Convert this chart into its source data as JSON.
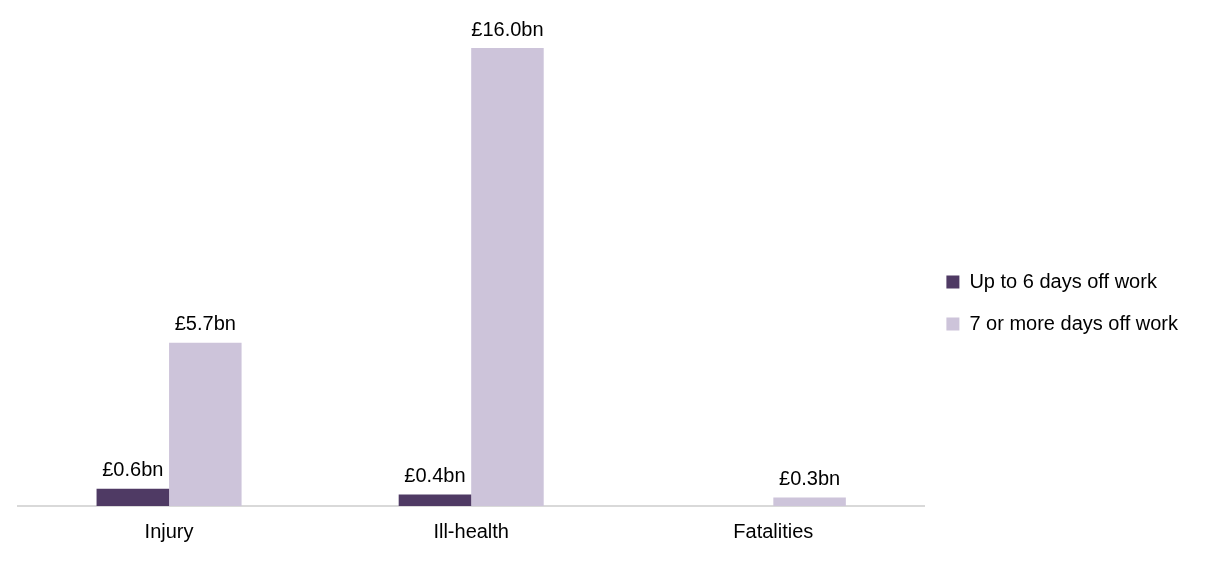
{
  "chart_data": {
    "type": "bar",
    "categories": [
      "Injury",
      "Ill-health",
      "Fatalities"
    ],
    "series": [
      {
        "name": "Up to 6 days off work",
        "color": "#4f3a64",
        "values": [
          0.6,
          0.4,
          null
        ],
        "value_labels": [
          "£0.6bn",
          "£0.4bn",
          null
        ]
      },
      {
        "name": "7 or more days off work",
        "color": "#cdc4da",
        "values": [
          5.7,
          16.0,
          0.3
        ],
        "value_labels": [
          "£5.7bn",
          "£16.0bn",
          "£0.3bn"
        ]
      }
    ],
    "relative": false,
    "grid": false,
    "legend": "right"
  }
}
